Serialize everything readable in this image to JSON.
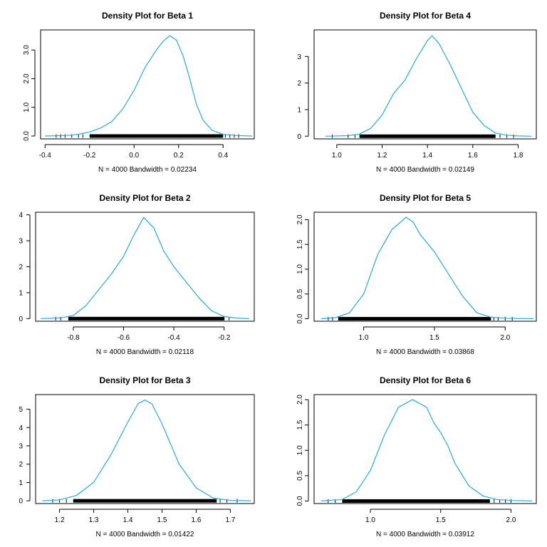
{
  "chart_data": [
    {
      "type": "line",
      "title": "Density Plot for Beta 1",
      "xlabel": "N = 4000   Bandwidth = 0.02234",
      "ylabel": "",
      "xlim": [
        -0.42,
        0.54
      ],
      "ylim": [
        -0.1,
        3.7
      ],
      "xticks": [
        -0.4,
        -0.2,
        0.0,
        0.2,
        0.4
      ],
      "xtick_labels": [
        "-0.4",
        "-0.2",
        "0.0",
        "0.2",
        "0.4"
      ],
      "yticks": [
        0.0,
        1.0,
        2.0,
        3.0
      ],
      "ytick_labels": [
        "0.0",
        "1.0",
        "2.0",
        "3.0"
      ],
      "y_labels_rotated": true,
      "series": [
        {
          "x": [
            -0.4,
            -0.3,
            -0.25,
            -0.2,
            -0.15,
            -0.1,
            -0.05,
            0.0,
            0.05,
            0.1,
            0.13,
            0.16,
            0.19,
            0.22,
            0.25,
            0.28,
            0.31,
            0.35,
            0.4,
            0.45,
            0.53
          ],
          "y": [
            0.0,
            0.02,
            0.06,
            0.14,
            0.28,
            0.5,
            0.95,
            1.6,
            2.4,
            3.0,
            3.3,
            3.5,
            3.35,
            2.8,
            2.0,
            1.1,
            0.55,
            0.2,
            0.06,
            0.02,
            0.0
          ]
        }
      ],
      "rug": {
        "dense": [
          -0.2,
          0.4
        ],
        "sparse": [
          -0.35,
          -0.33,
          -0.31,
          -0.28,
          -0.25,
          -0.23,
          0.41,
          0.43,
          0.45,
          0.47
        ]
      }
    },
    {
      "type": "line",
      "title": "Density Plot for Beta 4",
      "xlabel": "N = 4000   Bandwidth = 0.02149",
      "ylabel": "",
      "xlim": [
        0.9,
        1.88
      ],
      "ylim": [
        -0.1,
        4.0
      ],
      "xticks": [
        1.0,
        1.2,
        1.4,
        1.6,
        1.8
      ],
      "xtick_labels": [
        "1.0",
        "1.2",
        "1.4",
        "1.6",
        "1.8"
      ],
      "yticks": [
        0,
        1,
        2,
        3
      ],
      "ytick_labels": [
        "0",
        "1",
        "2",
        "3"
      ],
      "y_labels_rotated": false,
      "series": [
        {
          "x": [
            0.95,
            1.05,
            1.1,
            1.15,
            1.2,
            1.25,
            1.3,
            1.35,
            1.4,
            1.42,
            1.45,
            1.5,
            1.55,
            1.6,
            1.65,
            1.7,
            1.75,
            1.8,
            1.86
          ],
          "y": [
            0.0,
            0.02,
            0.08,
            0.3,
            0.8,
            1.6,
            2.1,
            2.9,
            3.6,
            3.78,
            3.5,
            2.7,
            1.8,
            0.9,
            0.4,
            0.12,
            0.04,
            0.01,
            0.0
          ]
        }
      ],
      "rug": {
        "dense": [
          1.1,
          1.7
        ],
        "sparse": [
          0.98,
          1.05,
          1.08,
          1.72,
          1.75,
          1.78
        ]
      }
    },
    {
      "type": "line",
      "title": "Density Plot for Beta 2",
      "xlabel": "N = 4000   Bandwidth = 0.02118",
      "ylabel": "",
      "xlim": [
        -0.95,
        -0.08
      ],
      "ylim": [
        -0.1,
        4.1
      ],
      "xticks": [
        -0.8,
        -0.6,
        -0.4,
        -0.2
      ],
      "xtick_labels": [
        "-0.8",
        "-0.6",
        "-0.4",
        "-0.2"
      ],
      "yticks": [
        0,
        1,
        2,
        3,
        4
      ],
      "ytick_labels": [
        "0",
        "1",
        "2",
        "3",
        "4"
      ],
      "y_labels_rotated": false,
      "series": [
        {
          "x": [
            -0.93,
            -0.85,
            -0.8,
            -0.75,
            -0.7,
            -0.65,
            -0.6,
            -0.56,
            -0.52,
            -0.48,
            -0.44,
            -0.4,
            -0.35,
            -0.3,
            -0.25,
            -0.2,
            -0.15,
            -0.1
          ],
          "y": [
            0.0,
            0.03,
            0.12,
            0.5,
            1.1,
            1.7,
            2.4,
            3.2,
            3.9,
            3.5,
            2.6,
            2.0,
            1.4,
            0.8,
            0.3,
            0.08,
            0.02,
            0.0
          ]
        }
      ],
      "rug": {
        "dense": [
          -0.82,
          -0.2
        ],
        "sparse": [
          -0.87,
          -0.85,
          -0.2,
          -0.18
        ]
      }
    },
    {
      "type": "line",
      "title": "Density Plot for Beta 5",
      "xlabel": "N = 4000   Bandwidth = 0.03868",
      "ylabel": "",
      "xlim": [
        0.65,
        2.22
      ],
      "ylim": [
        -0.05,
        2.15
      ],
      "xticks": [
        1.0,
        1.5,
        2.0
      ],
      "xtick_labels": [
        "1.0",
        "1.5",
        "2.0"
      ],
      "yticks": [
        0.0,
        0.5,
        1.0,
        1.5,
        2.0
      ],
      "ytick_labels": [
        "0.0",
        "0.5",
        "1.0",
        "1.5",
        "2.0"
      ],
      "y_labels_rotated": true,
      "series": [
        {
          "x": [
            0.7,
            0.8,
            0.9,
            1.0,
            1.1,
            1.2,
            1.3,
            1.35,
            1.4,
            1.5,
            1.6,
            1.7,
            1.8,
            1.9,
            2.0,
            2.2
          ],
          "y": [
            0.0,
            0.02,
            0.12,
            0.5,
            1.3,
            1.8,
            2.05,
            1.95,
            1.7,
            1.35,
            0.9,
            0.45,
            0.12,
            0.03,
            0.01,
            0.0
          ]
        }
      ],
      "rug": {
        "dense": [
          0.82,
          1.9
        ],
        "sparse": [
          0.75,
          0.78,
          1.92,
          1.95,
          2.0,
          2.05
        ]
      }
    },
    {
      "type": "line",
      "title": "Density Plot for Beta 3",
      "xlabel": "N = 4000   Bandwidth = 0.01422",
      "ylabel": "",
      "xlim": [
        1.13,
        1.77
      ],
      "ylim": [
        -0.15,
        5.8
      ],
      "xticks": [
        1.2,
        1.3,
        1.4,
        1.5,
        1.6,
        1.7
      ],
      "xtick_labels": [
        "1.2",
        "1.3",
        "1.4",
        "1.5",
        "1.6",
        "1.7"
      ],
      "yticks": [
        0,
        1,
        2,
        3,
        4,
        5
      ],
      "ytick_labels": [
        "0",
        "1",
        "2",
        "3",
        "4",
        "5"
      ],
      "y_labels_rotated": false,
      "series": [
        {
          "x": [
            1.15,
            1.2,
            1.25,
            1.3,
            1.35,
            1.4,
            1.43,
            1.45,
            1.47,
            1.5,
            1.55,
            1.6,
            1.65,
            1.7,
            1.76
          ],
          "y": [
            0.0,
            0.05,
            0.3,
            1.0,
            2.5,
            4.3,
            5.3,
            5.5,
            5.3,
            4.2,
            2.0,
            0.7,
            0.15,
            0.02,
            0.0
          ]
        }
      ],
      "rug": {
        "dense": [
          1.24,
          1.66
        ],
        "sparse": [
          1.18,
          1.2,
          1.22,
          1.67,
          1.69,
          1.72
        ]
      }
    },
    {
      "type": "line",
      "title": "Density Plot for Beta 6",
      "xlabel": "N = 4000   Bandwidth = 0.03912",
      "ylabel": "",
      "xlim": [
        0.6,
        2.18
      ],
      "ylim": [
        -0.05,
        2.1
      ],
      "xticks": [
        1.0,
        1.5,
        2.0
      ],
      "xtick_labels": [
        "1.0",
        "1.5",
        "2.0"
      ],
      "yticks": [
        0.0,
        0.5,
        1.0,
        1.5,
        2.0
      ],
      "ytick_labels": [
        "0.0",
        "0.5",
        "1.0",
        "1.5",
        "2.0"
      ],
      "y_labels_rotated": true,
      "series": [
        {
          "x": [
            0.65,
            0.8,
            0.9,
            1.0,
            1.1,
            1.2,
            1.3,
            1.4,
            1.45,
            1.5,
            1.55,
            1.6,
            1.7,
            1.8,
            1.9,
            2.0,
            2.15
          ],
          "y": [
            0.0,
            0.03,
            0.18,
            0.6,
            1.3,
            1.85,
            2.0,
            1.85,
            1.55,
            1.35,
            1.1,
            0.75,
            0.3,
            0.1,
            0.03,
            0.01,
            0.0
          ]
        }
      ],
      "rug": {
        "dense": [
          0.8,
          1.85
        ],
        "sparse": [
          0.7,
          0.75,
          1.88,
          1.92,
          1.96,
          2.0
        ]
      }
    }
  ],
  "colors": {
    "curve": "#29a9d7",
    "axis": "#000000"
  }
}
